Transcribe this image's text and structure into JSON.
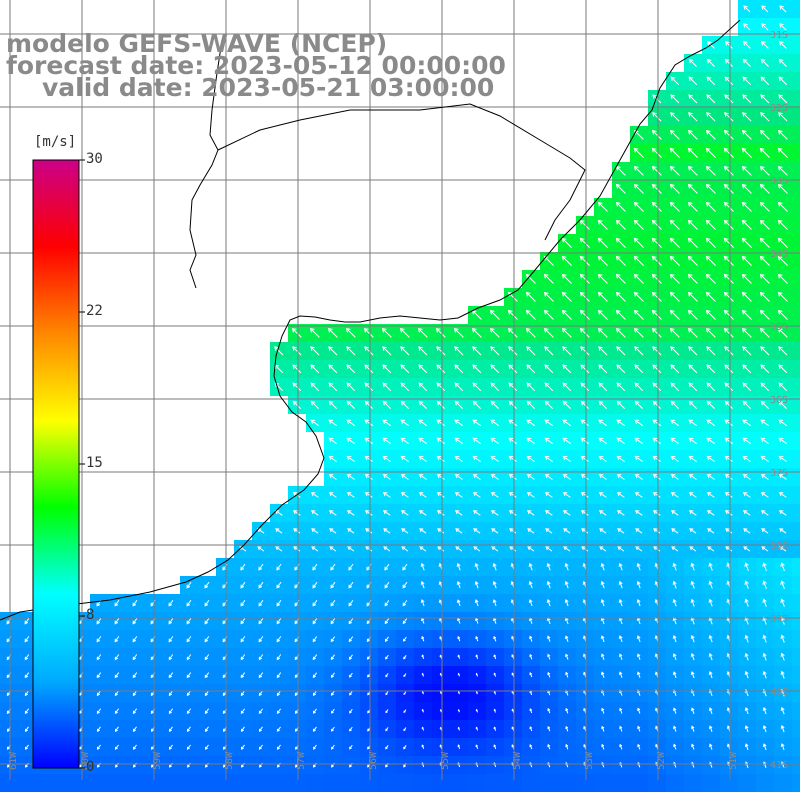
{
  "header": {
    "line1": "modelo GEFS-WAVE (NCEP)",
    "line2": "forecast date: 2023-05-12 00:00:00",
    "line3": "valid date: 2023-05-21 03:00:00"
  },
  "legend": {
    "unit": "[m/s]",
    "ticks": [
      "30",
      "22",
      "15",
      "8",
      "0"
    ],
    "colors": [
      "#0000ff",
      "#00aaff",
      "#00ffff",
      "#00ff00",
      "#ffff00",
      "#ff8800",
      "#ff0000",
      "#cc0088"
    ]
  },
  "grid": {
    "lon_labels": [
      "61W",
      "60W",
      "59W",
      "58W",
      "57W",
      "56W",
      "55W",
      "54W",
      "53W",
      "52W",
      "51W"
    ],
    "lat_labels": [
      "31S",
      "32S",
      "33S",
      "34S",
      "35S",
      "36S",
      "37S",
      "38S",
      "39S",
      "40S",
      "41S"
    ]
  },
  "colors": {
    "land": "#ffffff",
    "coast": "#000000",
    "grid": "#7a7a7a",
    "arrow": "#ffffff"
  }
}
